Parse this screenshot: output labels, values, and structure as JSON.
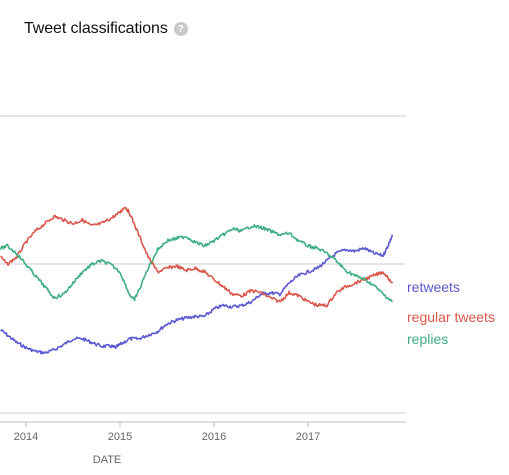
{
  "title": "Tweet classifications",
  "help_icon": "?",
  "chart_data": {
    "type": "line",
    "title": "Tweet classifications",
    "xlabel": "DATE",
    "ylabel": "",
    "x_ticks": [
      "2014",
      "2015",
      "2016",
      "2017"
    ],
    "grid": "horizontal",
    "legend_placement": "right (labels at line ends)",
    "series": [
      {
        "name": "retweets",
        "color": "#5d5ad1",
        "points": [
          [
            2013.7,
            0.315
          ],
          [
            2013.8,
            0.305
          ],
          [
            2013.9,
            0.295
          ],
          [
            2014.0,
            0.288
          ],
          [
            2014.1,
            0.283
          ],
          [
            2014.2,
            0.281
          ],
          [
            2014.3,
            0.285
          ],
          [
            2014.4,
            0.292
          ],
          [
            2014.5,
            0.3
          ],
          [
            2014.6,
            0.3
          ],
          [
            2014.7,
            0.295
          ],
          [
            2014.8,
            0.29
          ],
          [
            2014.9,
            0.29
          ],
          [
            2014.95,
            0.288
          ],
          [
            2015.0,
            0.292
          ],
          [
            2015.1,
            0.3
          ],
          [
            2015.2,
            0.3
          ],
          [
            2015.3,
            0.305
          ],
          [
            2015.4,
            0.31
          ],
          [
            2015.5,
            0.32
          ],
          [
            2015.6,
            0.325
          ],
          [
            2015.7,
            0.328
          ],
          [
            2015.8,
            0.33
          ],
          [
            2015.9,
            0.33
          ],
          [
            2016.0,
            0.34
          ],
          [
            2016.1,
            0.345
          ],
          [
            2016.2,
            0.343
          ],
          [
            2016.3,
            0.345
          ],
          [
            2016.4,
            0.35
          ],
          [
            2016.5,
            0.36
          ],
          [
            2016.6,
            0.362
          ],
          [
            2016.7,
            0.36
          ],
          [
            2016.8,
            0.375
          ],
          [
            2016.9,
            0.385
          ],
          [
            2017.0,
            0.39
          ],
          [
            2017.1,
            0.395
          ],
          [
            2017.2,
            0.405
          ],
          [
            2017.3,
            0.415
          ],
          [
            2017.4,
            0.42
          ],
          [
            2017.5,
            0.418
          ],
          [
            2017.6,
            0.422
          ],
          [
            2017.7,
            0.415
          ],
          [
            2017.8,
            0.412
          ],
          [
            2017.85,
            0.425
          ],
          [
            2017.9,
            0.44
          ]
        ]
      },
      {
        "name": "regular tweets",
        "color": "#d9574b",
        "points": [
          [
            2013.7,
            0.415
          ],
          [
            2013.8,
            0.4
          ],
          [
            2013.9,
            0.41
          ],
          [
            2014.0,
            0.43
          ],
          [
            2014.1,
            0.445
          ],
          [
            2014.2,
            0.455
          ],
          [
            2014.3,
            0.465
          ],
          [
            2014.4,
            0.46
          ],
          [
            2014.5,
            0.455
          ],
          [
            2014.6,
            0.46
          ],
          [
            2014.7,
            0.452
          ],
          [
            2014.8,
            0.455
          ],
          [
            2014.9,
            0.462
          ],
          [
            2015.0,
            0.47
          ],
          [
            2015.05,
            0.478
          ],
          [
            2015.1,
            0.47
          ],
          [
            2015.2,
            0.44
          ],
          [
            2015.3,
            0.41
          ],
          [
            2015.4,
            0.39
          ],
          [
            2015.5,
            0.395
          ],
          [
            2015.6,
            0.398
          ],
          [
            2015.7,
            0.392
          ],
          [
            2015.8,
            0.395
          ],
          [
            2015.9,
            0.39
          ],
          [
            2016.0,
            0.38
          ],
          [
            2016.1,
            0.37
          ],
          [
            2016.2,
            0.36
          ],
          [
            2016.3,
            0.358
          ],
          [
            2016.4,
            0.365
          ],
          [
            2016.5,
            0.362
          ],
          [
            2016.6,
            0.355
          ],
          [
            2016.7,
            0.35
          ],
          [
            2016.8,
            0.362
          ],
          [
            2016.9,
            0.358
          ],
          [
            2017.0,
            0.35
          ],
          [
            2017.1,
            0.345
          ],
          [
            2017.2,
            0.345
          ],
          [
            2017.3,
            0.362
          ],
          [
            2017.4,
            0.37
          ],
          [
            2017.5,
            0.375
          ],
          [
            2017.6,
            0.38
          ],
          [
            2017.7,
            0.385
          ],
          [
            2017.8,
            0.39
          ],
          [
            2017.9,
            0.375
          ]
        ]
      },
      {
        "name": "replies",
        "color": "#3fae80",
        "points": [
          [
            2013.7,
            0.42
          ],
          [
            2013.8,
            0.425
          ],
          [
            2013.9,
            0.415
          ],
          [
            2014.0,
            0.4
          ],
          [
            2014.1,
            0.385
          ],
          [
            2014.2,
            0.37
          ],
          [
            2014.3,
            0.355
          ],
          [
            2014.4,
            0.36
          ],
          [
            2014.5,
            0.375
          ],
          [
            2014.6,
            0.39
          ],
          [
            2014.7,
            0.4
          ],
          [
            2014.8,
            0.405
          ],
          [
            2014.9,
            0.4
          ],
          [
            2015.0,
            0.39
          ],
          [
            2015.1,
            0.36
          ],
          [
            2015.15,
            0.352
          ],
          [
            2015.2,
            0.365
          ],
          [
            2015.3,
            0.395
          ],
          [
            2015.4,
            0.42
          ],
          [
            2015.5,
            0.432
          ],
          [
            2015.6,
            0.435
          ],
          [
            2015.7,
            0.438
          ],
          [
            2015.8,
            0.43
          ],
          [
            2015.9,
            0.425
          ],
          [
            2016.0,
            0.432
          ],
          [
            2016.1,
            0.44
          ],
          [
            2016.2,
            0.448
          ],
          [
            2016.3,
            0.445
          ],
          [
            2016.4,
            0.452
          ],
          [
            2016.5,
            0.45
          ],
          [
            2016.6,
            0.445
          ],
          [
            2016.7,
            0.44
          ],
          [
            2016.8,
            0.442
          ],
          [
            2016.9,
            0.432
          ],
          [
            2017.0,
            0.425
          ],
          [
            2017.1,
            0.422
          ],
          [
            2017.2,
            0.415
          ],
          [
            2017.3,
            0.405
          ],
          [
            2017.4,
            0.392
          ],
          [
            2017.5,
            0.385
          ],
          [
            2017.6,
            0.38
          ],
          [
            2017.7,
            0.372
          ],
          [
            2017.8,
            0.36
          ],
          [
            2017.9,
            0.35
          ]
        ]
      }
    ]
  }
}
